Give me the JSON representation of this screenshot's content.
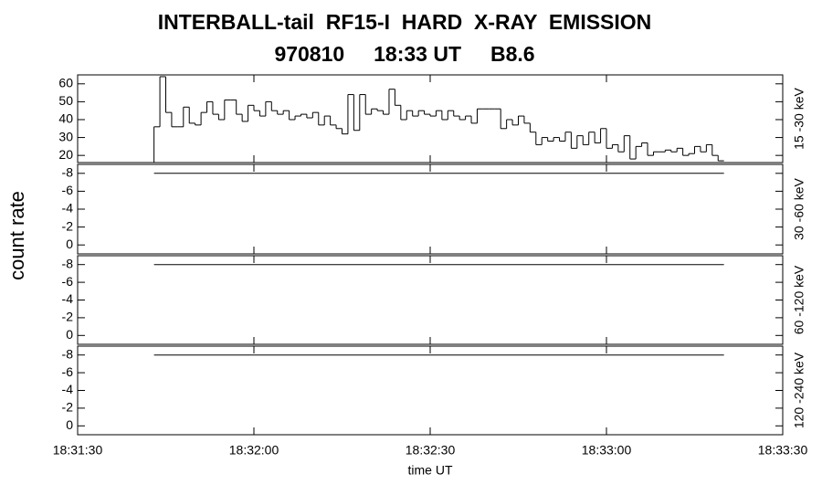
{
  "title": "INTERBALL-tail  RF15-I  HARD  X-RAY  EMISSION",
  "subtitle": "970810     18:33 UT     B8.6",
  "ylabel": "count rate",
  "chart_data": [
    {
      "type": "step",
      "ylabel": "15 -30 keV",
      "ylim": [
        16,
        65
      ],
      "yticks": [
        20,
        30,
        40,
        50,
        60
      ],
      "xlim": [
        66690,
        66810
      ],
      "color": "#000000",
      "x": [
        66703,
        66704,
        66705,
        66706,
        66707,
        66708,
        66709,
        66710,
        66711,
        66712,
        66713,
        66714,
        66715,
        66716,
        66717,
        66718,
        66719,
        66720,
        66721,
        66722,
        66723,
        66724,
        66725,
        66726,
        66727,
        66728,
        66729,
        66730,
        66731,
        66732,
        66733,
        66734,
        66735,
        66736,
        66737,
        66738,
        66739,
        66740,
        66741,
        66742,
        66743,
        66744,
        66745,
        66746,
        66747,
        66748,
        66749,
        66750,
        66751,
        66752,
        66753,
        66754,
        66755,
        66756,
        66757,
        66758,
        66759,
        66760,
        66761,
        66762,
        66763,
        66764,
        66765,
        66766,
        66767,
        66768,
        66769,
        66770,
        66771,
        66772,
        66773,
        66774,
        66775,
        66776,
        66777,
        66778,
        66779,
        66780,
        66781,
        66782,
        66783,
        66784,
        66785,
        66786,
        66787,
        66788,
        66789,
        66790,
        66791,
        66792,
        66793,
        66794,
        66795,
        66796,
        66797,
        66798,
        66799
      ],
      "values": [
        36,
        64,
        44,
        36,
        36,
        47,
        38,
        37,
        44,
        50,
        43,
        40,
        51,
        51,
        43,
        39,
        48,
        45,
        42,
        50,
        45,
        43,
        45,
        40,
        42,
        43,
        41,
        44,
        37,
        42,
        37,
        35,
        32,
        54,
        34,
        54,
        43,
        46,
        45,
        43,
        57,
        48,
        40,
        45,
        42,
        45,
        43,
        42,
        45,
        40,
        45,
        42,
        40,
        42,
        38,
        46,
        46,
        46,
        46,
        35,
        40,
        37,
        42,
        38,
        33,
        26,
        30,
        28,
        30,
        28,
        33,
        24,
        31,
        26,
        33,
        27,
        35,
        24,
        26,
        22,
        31,
        18,
        25,
        27,
        20,
        22,
        22,
        23,
        22,
        24,
        20,
        21,
        25,
        22,
        26,
        20,
        17
      ]
    },
    {
      "type": "line",
      "ylabel": "30 -60 keV",
      "ylim": [
        1,
        -9
      ],
      "yticks": [
        -8,
        -6,
        -4,
        -2,
        0
      ],
      "xlim": [
        66690,
        66810
      ],
      "color": "#000000",
      "x": [
        66703,
        66800
      ],
      "values": [
        -8,
        -8
      ]
    },
    {
      "type": "line",
      "ylabel": "60 -120 keV",
      "ylim": [
        1,
        -9
      ],
      "yticks": [
        -8,
        -6,
        -4,
        -2,
        0
      ],
      "xlim": [
        66690,
        66810
      ],
      "color": "#000000",
      "x": [
        66703,
        66800
      ],
      "values": [
        -8,
        -8
      ]
    },
    {
      "type": "line",
      "ylabel": "120 -240 keV",
      "ylim": [
        1,
        -9
      ],
      "yticks": [
        -8,
        -6,
        -4,
        -2,
        0
      ],
      "xlim": [
        66690,
        66810
      ],
      "color": "#000000",
      "x": [
        66703,
        66800
      ],
      "values": [
        -8,
        -8
      ],
      "xlabel": "time UT",
      "xticks": [
        {
          "value": 66690,
          "label": "18:31:30"
        },
        {
          "value": 66720,
          "label": "18:32:00"
        },
        {
          "value": 66750,
          "label": "18:32:30"
        },
        {
          "value": 66780,
          "label": "18:33:00"
        },
        {
          "value": 66810,
          "label": "18:33:30"
        }
      ]
    }
  ]
}
